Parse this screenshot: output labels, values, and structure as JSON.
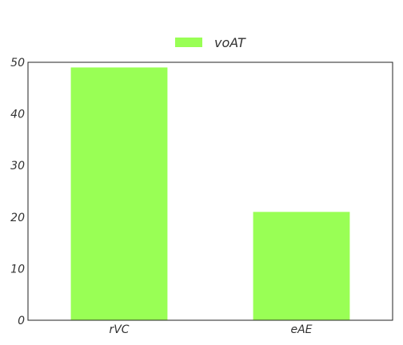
{
  "chart_data": {
    "type": "bar",
    "categories": [
      "rVC",
      "eAE"
    ],
    "series": [
      {
        "name": "voAT",
        "values": [
          49,
          21
        ],
        "color": "#99ff55"
      }
    ],
    "ylim": [
      0,
      50
    ],
    "yticks": [
      0,
      10,
      20,
      30,
      40,
      50
    ],
    "grid": false,
    "legend_position": "top-center"
  }
}
